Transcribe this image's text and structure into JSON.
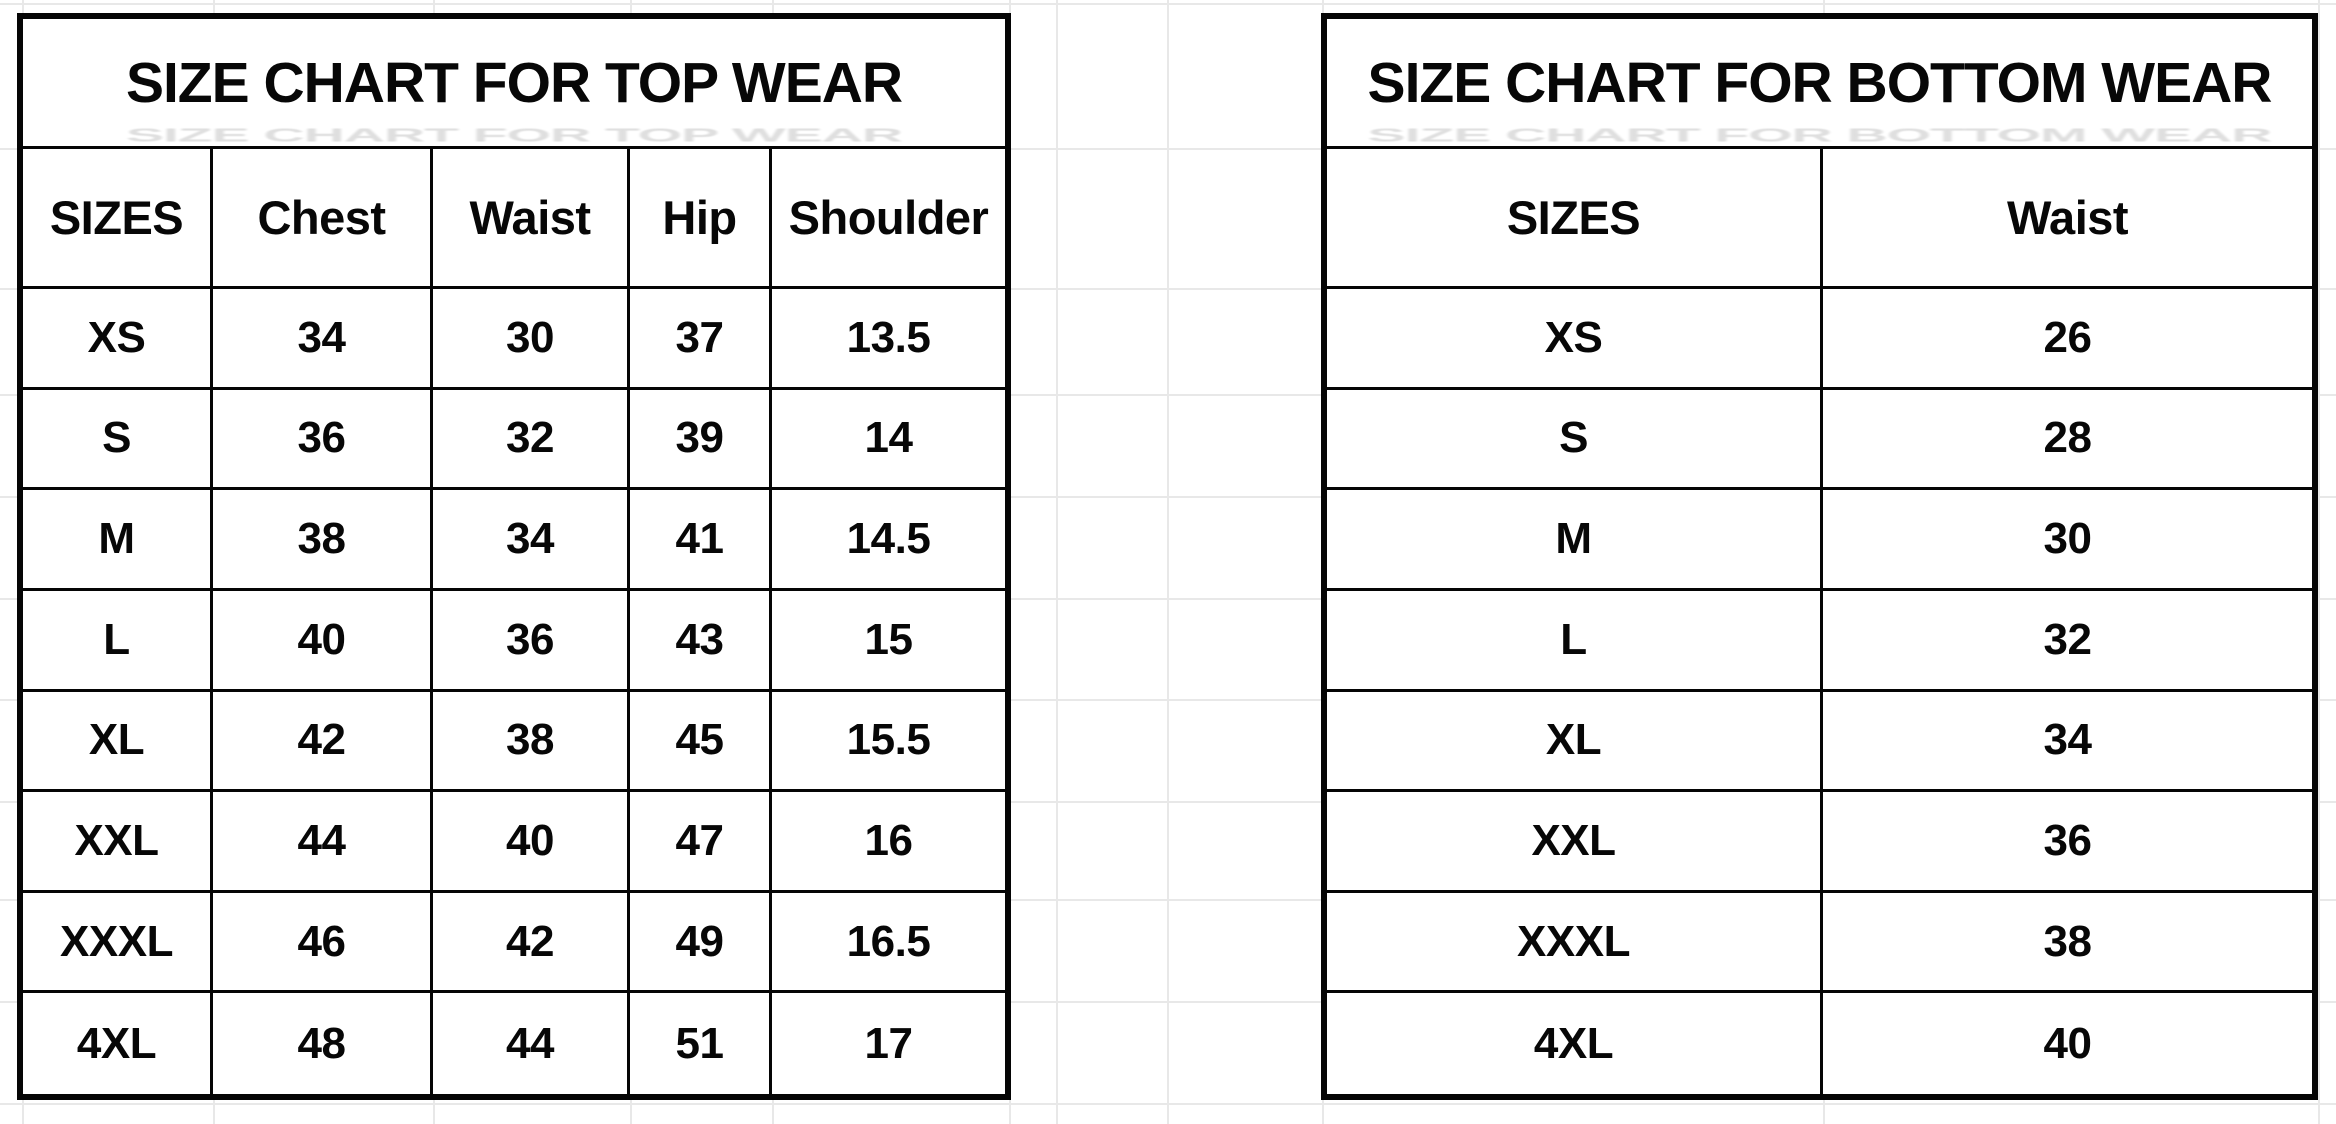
{
  "palette": {
    "background": "#ffffff",
    "table_border": "#050505",
    "text": "#070707",
    "sheet_gridline": "#e8e8e8"
  },
  "tables": [
    {
      "id": "top_wear",
      "title": "SIZE CHART FOR TOP WEAR",
      "columns": [
        "SIZES",
        "Chest",
        "Waist",
        "Hip",
        "Shoulder"
      ],
      "rows": [
        [
          "XS",
          "34",
          "30",
          "37",
          "13.5"
        ],
        [
          "S",
          "36",
          "32",
          "39",
          "14"
        ],
        [
          "M",
          "38",
          "34",
          "41",
          "14.5"
        ],
        [
          "L",
          "40",
          "36",
          "43",
          "15"
        ],
        [
          "XL",
          "42",
          "38",
          "45",
          "15.5"
        ],
        [
          "XXL",
          "44",
          "40",
          "47",
          "16"
        ],
        [
          "XXXL",
          "46",
          "42",
          "49",
          "16.5"
        ],
        [
          "4XL",
          "48",
          "44",
          "51",
          "17"
        ]
      ]
    },
    {
      "id": "bottom_wear",
      "title": "SIZE CHART FOR BOTTOM WEAR",
      "columns": [
        "SIZES",
        "Waist"
      ],
      "rows": [
        [
          "XS",
          "26"
        ],
        [
          "S",
          "28"
        ],
        [
          "M",
          "30"
        ],
        [
          "L",
          "32"
        ],
        [
          "XL",
          "34"
        ],
        [
          "XXL",
          "36"
        ],
        [
          "XXXL",
          "38"
        ],
        [
          "4XL",
          "40"
        ]
      ]
    }
  ]
}
